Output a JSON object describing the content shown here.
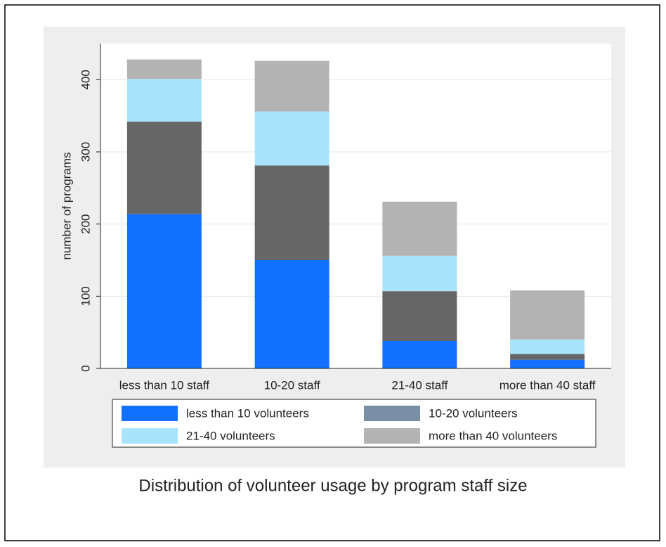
{
  "chart_data": {
    "type": "stacked_bar",
    "title": "Distribution of volunteer usage by program staff size",
    "y_label": "number of programs",
    "categories": [
      "less than 10 staff",
      "10-20 staff",
      "21-40 staff",
      "more than 40 staff"
    ],
    "series": [
      {
        "name": "less than 10 volunteers",
        "color": "#1170ff",
        "values": [
          214,
          150,
          38,
          12
        ]
      },
      {
        "name": "10-20 volunteers",
        "color": "#666666",
        "legend_color": "#7a8fa6",
        "values": [
          128,
          131,
          69,
          8
        ]
      },
      {
        "name": "21-40 volunteers",
        "color": "#a8e4fc",
        "values": [
          59,
          75,
          49,
          20
        ]
      },
      {
        "name": "more than 40 volunteers",
        "color": "#b3b3b3",
        "values": [
          27,
          70,
          75,
          68
        ]
      }
    ],
    "ylim": [
      0,
      450
    ],
    "yticks": [
      0,
      100,
      200,
      300,
      400
    ],
    "grid": true
  }
}
